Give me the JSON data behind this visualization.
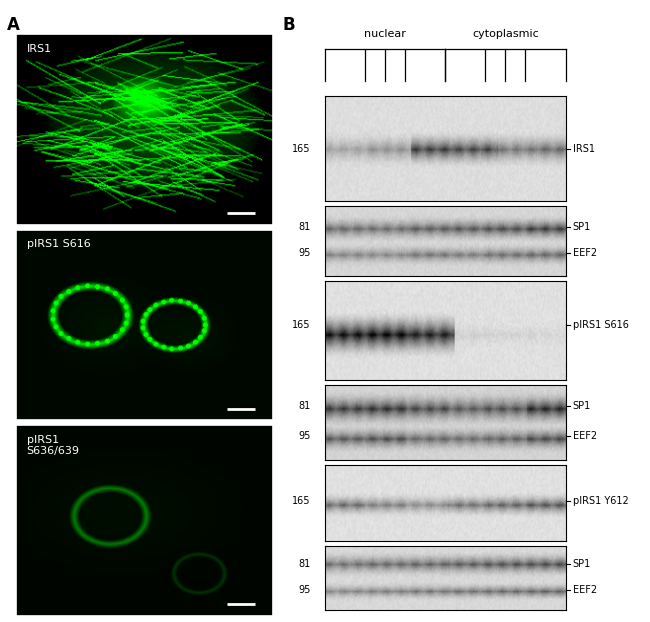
{
  "fig_width": 6.5,
  "fig_height": 6.22,
  "dpi": 100,
  "background_color": "#ffffff",
  "panel_A_label": "A",
  "panel_B_label": "B",
  "icc_labels": [
    "IRS1",
    "pIRS1 S616",
    "pIRS1\nS636/639"
  ],
  "icc_label_fontsize": 8,
  "icc_label_color": "#ffffff",
  "label_fontsize": 12,
  "label_fontweight": "bold"
}
